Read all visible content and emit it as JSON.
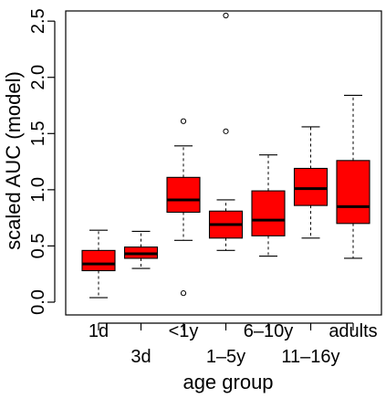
{
  "chart_data": {
    "type": "boxplot",
    "xlabel": "age group",
    "ylabel": "scaled AUC (model)",
    "ylim": [
      0.0,
      2.55
    ],
    "yticks": [
      "0.0",
      "0.5",
      "1.0",
      "1.5",
      "2.0",
      "2.5"
    ],
    "ytick_values": [
      0.0,
      0.5,
      1.0,
      1.5,
      2.0,
      2.5
    ],
    "box_color": "#ff0000",
    "categories": [
      "1d",
      "3d",
      "<1y",
      "1–5y",
      "6–10y",
      "11–16y",
      "adults"
    ],
    "boxes": [
      {
        "name": "1d",
        "whisker_low": 0.04,
        "q1": 0.28,
        "median": 0.34,
        "q3": 0.46,
        "whisker_high": 0.64,
        "outliers": []
      },
      {
        "name": "3d",
        "whisker_low": 0.3,
        "q1": 0.39,
        "median": 0.43,
        "q3": 0.49,
        "whisker_high": 0.63,
        "outliers": []
      },
      {
        "name": "<1y",
        "whisker_low": 0.55,
        "q1": 0.8,
        "median": 0.91,
        "q3": 1.11,
        "whisker_high": 1.39,
        "outliers": [
          1.61,
          0.08
        ]
      },
      {
        "name": "1–5y",
        "whisker_low": 0.46,
        "q1": 0.57,
        "median": 0.69,
        "q3": 0.81,
        "whisker_high": 0.91,
        "outliers": [
          2.55,
          1.52
        ]
      },
      {
        "name": "6–10y",
        "whisker_low": 0.41,
        "q1": 0.59,
        "median": 0.73,
        "q3": 0.99,
        "whisker_high": 1.31,
        "outliers": []
      },
      {
        "name": "11–16y",
        "whisker_low": 0.57,
        "q1": 0.86,
        "median": 1.01,
        "q3": 1.19,
        "whisker_high": 1.56,
        "outliers": []
      },
      {
        "name": "adults",
        "whisker_low": 0.39,
        "q1": 0.7,
        "median": 0.85,
        "q3": 1.26,
        "whisker_high": 1.84,
        "outliers": []
      }
    ],
    "grid": false,
    "legend": "none"
  }
}
